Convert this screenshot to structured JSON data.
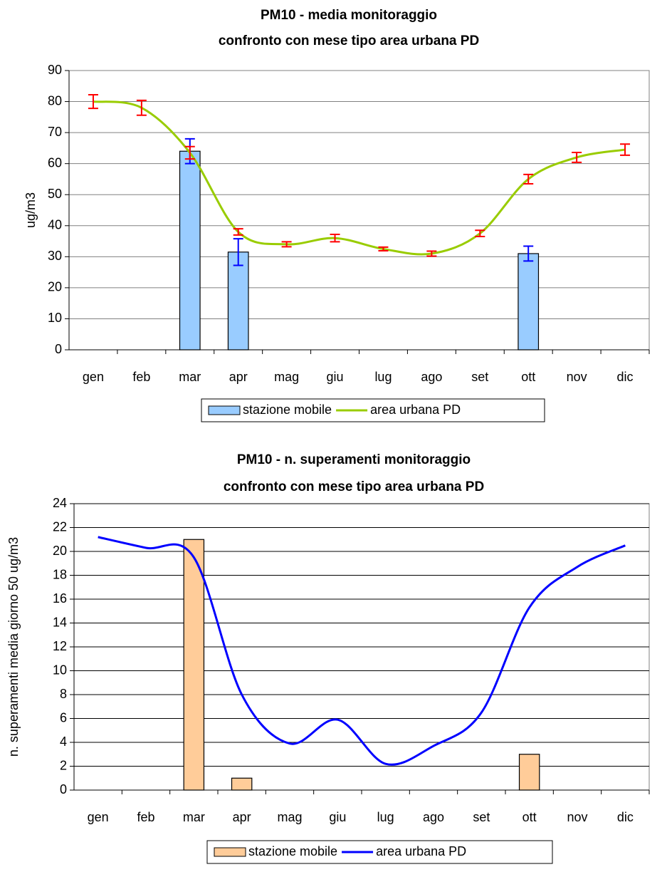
{
  "chart_data": [
    {
      "type": "combo",
      "title": [
        "PM10 -  media monitoraggio",
        "confronto con mese tipo area urbana PD"
      ],
      "y_label": "ug/m3",
      "categories": [
        "gen",
        "feb",
        "mar",
        "apr",
        "mag",
        "giu",
        "lug",
        "ago",
        "set",
        "ott",
        "nov",
        "dic"
      ],
      "ylim": [
        0,
        90
      ],
      "yticks": [
        0,
        10,
        20,
        30,
        40,
        50,
        60,
        70,
        80,
        90
      ],
      "grid": true,
      "series": [
        {
          "name": "stazione mobile",
          "type": "bar",
          "color": "#99ccff",
          "error_color": "#0000ff",
          "values": [
            0,
            0,
            64,
            31.5,
            0,
            0,
            0,
            0,
            0,
            31,
            0,
            0
          ],
          "errors": [
            null,
            null,
            4,
            4.3,
            null,
            null,
            null,
            null,
            null,
            2.4,
            null,
            null
          ]
        },
        {
          "name": "area urbana PD",
          "type": "line",
          "color": "#99cc00",
          "error_color": "#ff0000",
          "values": [
            80,
            78,
            63.5,
            38,
            34,
            36,
            32.5,
            31,
            37.5,
            55,
            62,
            64.5
          ],
          "errors": [
            2.2,
            2.4,
            2,
            1,
            0.8,
            1.2,
            0.6,
            0.8,
            1,
            1.5,
            1.6,
            1.8
          ]
        }
      ]
    },
    {
      "type": "combo",
      "title": [
        "PM10 - n. superamenti monitoraggio",
        "confronto con mese tipo area urbana PD"
      ],
      "y_label": "n. superamenti media giorno 50 ug/m3",
      "categories": [
        "gen",
        "feb",
        "mar",
        "apr",
        "mag",
        "giu",
        "lug",
        "ago",
        "set",
        "ott",
        "nov",
        "dic"
      ],
      "ylim": [
        0,
        24
      ],
      "yticks": [
        0,
        2,
        4,
        6,
        8,
        10,
        12,
        14,
        16,
        18,
        20,
        22,
        24
      ],
      "grid": true,
      "series": [
        {
          "name": "stazione mobile",
          "type": "bar",
          "color": "#ffcc99",
          "values": [
            null,
            null,
            21,
            1,
            null,
            null,
            null,
            null,
            null,
            3,
            null,
            null
          ]
        },
        {
          "name": "area urbana PD",
          "type": "line",
          "color": "#0000ff",
          "values": [
            21.2,
            20.3,
            19.5,
            8,
            3.9,
            5.9,
            2.2,
            3.7,
            6.5,
            15.3,
            18.7,
            20.5
          ]
        }
      ]
    }
  ]
}
